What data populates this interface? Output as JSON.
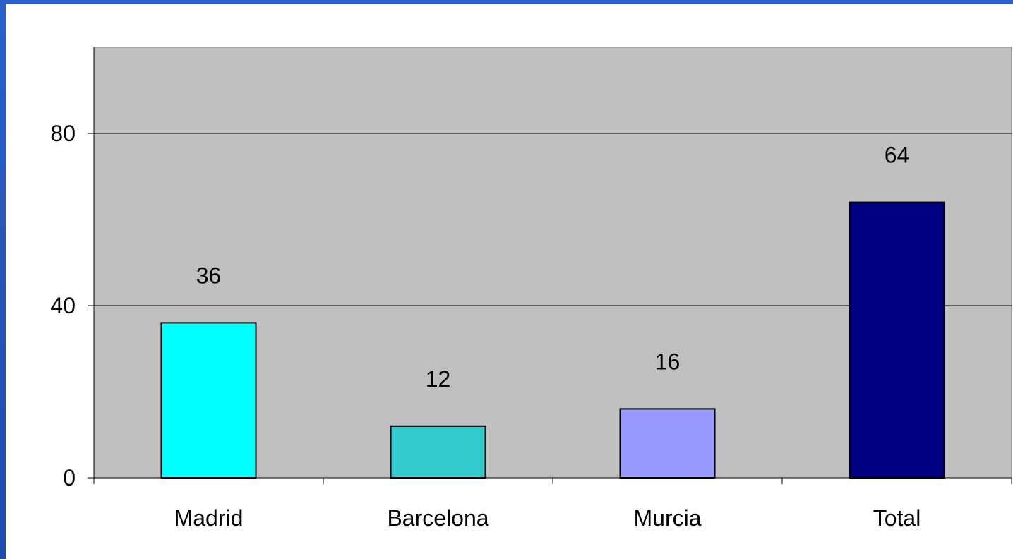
{
  "chart_data": {
    "type": "bar",
    "categories": [
      "Madrid",
      "Barcelona",
      "Murcia",
      "Total"
    ],
    "values": [
      36,
      12,
      16,
      64
    ],
    "data_labels": [
      "36",
      "12",
      "16",
      "64"
    ],
    "colors": [
      "#00ffff",
      "#33cccc",
      "#9999ff",
      "#000080"
    ],
    "yticks": [
      0,
      40,
      80
    ],
    "ytick_labels": [
      "0",
      "40",
      "80"
    ],
    "ylim": [
      0,
      100
    ],
    "grid": true,
    "plot_background": "#c0c0c0",
    "title": "",
    "xlabel": "",
    "ylabel": ""
  },
  "slide": {
    "background": "#2456c0",
    "content_background": "#ffffff"
  }
}
